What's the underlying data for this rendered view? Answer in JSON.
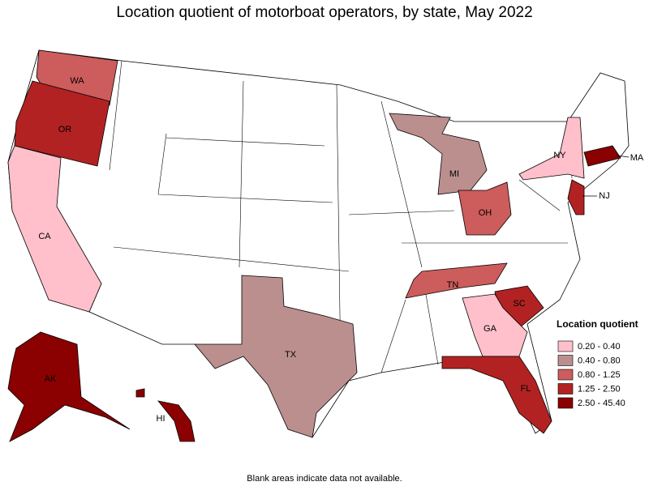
{
  "title": "Location quotient of motorboat operators, by state, May 2022",
  "legend": {
    "title": "Location quotient",
    "items": [
      {
        "label": "0.20 - 0.40",
        "color": "#ffc0cb"
      },
      {
        "label": "0.40 - 0.80",
        "color": "#bc8f8f"
      },
      {
        "label": "0.80 - 1.25",
        "color": "#cd5c5c"
      },
      {
        "label": "1.25 - 2.50",
        "color": "#b22222"
      },
      {
        "label": "2.50 - 45.40",
        "color": "#8b0000"
      }
    ]
  },
  "states": [
    {
      "label": "WA",
      "color": "#cd5c5c"
    },
    {
      "label": "OR",
      "color": "#b22222"
    },
    {
      "label": "CA",
      "color": "#ffc0cb"
    },
    {
      "label": "AK",
      "color": "#8b0000"
    },
    {
      "label": "HI",
      "color": "#8b0000"
    },
    {
      "label": "TX",
      "color": "#bc8f8f"
    },
    {
      "label": "MI",
      "color": "#bc8f8f"
    },
    {
      "label": "OH",
      "color": "#cd5c5c"
    },
    {
      "label": "TN",
      "color": "#cd5c5c"
    },
    {
      "label": "SC",
      "color": "#b22222"
    },
    {
      "label": "GA",
      "color": "#ffc0cb"
    },
    {
      "label": "FL",
      "color": "#b22222"
    },
    {
      "label": "NY",
      "color": "#ffc0cb"
    },
    {
      "label": "NJ",
      "color": "#b22222"
    },
    {
      "label": "MA",
      "color": "#8b0000"
    }
  ],
  "note": "Blank areas indicate data not available."
}
